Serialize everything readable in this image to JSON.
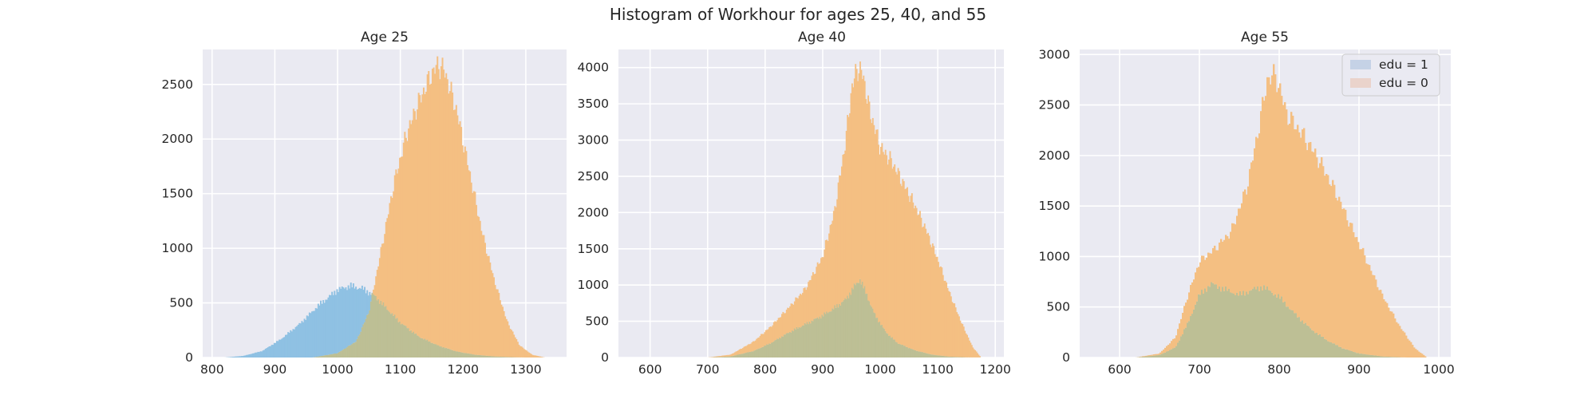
{
  "figure": {
    "suptitle": "Histogram of Workhour for ages 25, 40, and 55",
    "background": "#ffffff",
    "axes_background": "#eaeaf2",
    "grid_color": "#ffffff",
    "edu1_color": "#8fc1e3",
    "edu0_color": "#f4bf82",
    "overlap_color": "#bdbf95"
  },
  "chart_data": [
    {
      "type": "histogram",
      "title": "Age 25",
      "xlim": [
        785,
        1365
      ],
      "ylim": [
        0,
        2820
      ],
      "xticks": [
        800,
        900,
        1000,
        1100,
        1200,
        1300
      ],
      "yticks": [
        0,
        500,
        1000,
        1500,
        2000,
        2500
      ],
      "grid": true,
      "series": [
        {
          "name": "edu = 1",
          "x": [
            820,
            850,
            880,
            910,
            940,
            970,
            1000,
            1020,
            1040,
            1060,
            1080,
            1100,
            1130,
            1160,
            1190,
            1220,
            1250,
            1280,
            1300
          ],
          "values": [
            0,
            15,
            60,
            170,
            310,
            480,
            620,
            655,
            630,
            560,
            440,
            320,
            190,
            110,
            55,
            25,
            10,
            3,
            0
          ]
        },
        {
          "name": "edu = 0",
          "x": [
            960,
            1000,
            1030,
            1050,
            1070,
            1090,
            1110,
            1130,
            1150,
            1160,
            1170,
            1190,
            1210,
            1230,
            1250,
            1270,
            1290,
            1310,
            1330
          ],
          "values": [
            0,
            40,
            150,
            420,
            1000,
            1600,
            2050,
            2350,
            2600,
            2680,
            2630,
            2250,
            1700,
            1150,
            700,
            330,
            110,
            25,
            0
          ]
        }
      ]
    },
    {
      "type": "histogram",
      "title": "Age 40",
      "xlim": [
        545,
        1215
      ],
      "ylim": [
        0,
        4250
      ],
      "xticks": [
        600,
        700,
        800,
        900,
        1000,
        1100,
        1200
      ],
      "yticks": [
        0,
        500,
        1000,
        1500,
        2000,
        2500,
        3000,
        3500,
        4000
      ],
      "grid": true,
      "series": [
        {
          "name": "edu = 1",
          "x": [
            700,
            740,
            780,
            810,
            840,
            870,
            900,
            920,
            940,
            955,
            965,
            975,
            990,
            1010,
            1030,
            1060,
            1090,
            1120,
            1150,
            1180
          ],
          "values": [
            0,
            15,
            90,
            200,
            340,
            460,
            580,
            680,
            800,
            980,
            1080,
            900,
            600,
            350,
            200,
            100,
            40,
            12,
            3,
            0
          ]
        },
        {
          "name": "edu = 0",
          "x": [
            700,
            740,
            780,
            810,
            840,
            870,
            900,
            920,
            940,
            950,
            960,
            970,
            980,
            1000,
            1020,
            1040,
            1060,
            1080,
            1100,
            1120,
            1140,
            1160,
            1175
          ],
          "values": [
            0,
            40,
            220,
            430,
            680,
            950,
            1400,
            2000,
            3000,
            3700,
            4000,
            3900,
            3450,
            2900,
            2700,
            2400,
            2100,
            1750,
            1350,
            900,
            500,
            150,
            0
          ]
        }
      ]
    },
    {
      "type": "histogram",
      "title": "Age 55",
      "xlim": [
        550,
        1015
      ],
      "ylim": [
        0,
        3050
      ],
      "xticks": [
        600,
        700,
        800,
        900,
        1000
      ],
      "yticks": [
        0,
        500,
        1000,
        1500,
        2000,
        2500,
        3000
      ],
      "grid": true,
      "legend_position": "upper right",
      "series": [
        {
          "name": "edu = 1",
          "x": [
            620,
            650,
            670,
            685,
            700,
            715,
            730,
            750,
            770,
            780,
            800,
            820,
            840,
            860,
            880,
            900,
            930,
            960
          ],
          "values": [
            0,
            25,
            100,
            330,
            620,
            730,
            680,
            620,
            680,
            700,
            600,
            430,
            280,
            170,
            90,
            40,
            10,
            0
          ]
        },
        {
          "name": "edu = 0",
          "x": [
            620,
            650,
            670,
            685,
            700,
            720,
            740,
            760,
            775,
            785,
            795,
            810,
            830,
            850,
            870,
            890,
            910,
            930,
            950,
            970,
            985
          ],
          "values": [
            0,
            40,
            200,
            600,
            950,
            1080,
            1250,
            1700,
            2300,
            2750,
            2800,
            2400,
            2200,
            1950,
            1650,
            1300,
            950,
            600,
            320,
            90,
            0
          ]
        }
      ]
    }
  ]
}
